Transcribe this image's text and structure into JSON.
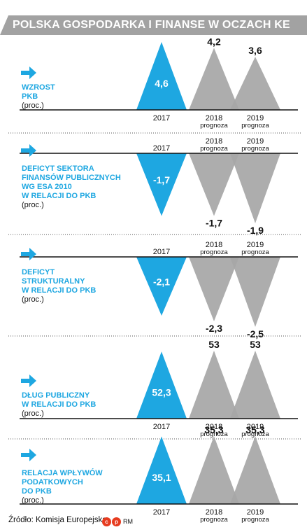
{
  "title": "POLSKA GOSPODARKA I FINANSE W OCZACH KE",
  "source": "Źródło: Komisja Europejska",
  "credit": "RM",
  "logo_text": [
    "c",
    "p"
  ],
  "colors": {
    "highlight": "#1ea7e1",
    "forecast": "#a6a6a6",
    "arrow": "#1ea7e1",
    "header": "#a2a2a2"
  },
  "chart_data": [
    {
      "type": "bar",
      "id": "gdp",
      "label": [
        "WZROST",
        "PKB"
      ],
      "unit": "(proc.)",
      "categories": [
        "2017",
        "2018",
        "2019"
      ],
      "category_notes": [
        "",
        "prognoza",
        "prognoza"
      ],
      "values": [
        4.6,
        4.2,
        3.6
      ],
      "value_labels": [
        "4,6",
        "4,2",
        "3,6"
      ]
    },
    {
      "type": "bar",
      "id": "deficit",
      "label": [
        "DEFICYT SEKTORA",
        "FINANSÓW PUBLICZNYCH",
        "WG ESA 2010",
        "W RELACJI DO PKB"
      ],
      "unit": "(proc.)",
      "categories": [
        "2017",
        "2018",
        "2019"
      ],
      "category_notes": [
        "",
        "prognoza",
        "prognoza"
      ],
      "values": [
        -1.7,
        -1.7,
        -1.9
      ],
      "value_labels": [
        "-1,7",
        "-1,7",
        "-1,9"
      ]
    },
    {
      "type": "bar",
      "id": "structural",
      "label": [
        "DEFICYT",
        "STRUKTURALNY",
        "W RELACJI DO PKB"
      ],
      "unit": "(proc.)",
      "categories": [
        "2017",
        "2018",
        "2019"
      ],
      "category_notes": [
        "",
        "prognoza",
        "prognoza"
      ],
      "values": [
        -2.1,
        -2.3,
        -2.5
      ],
      "value_labels": [
        "-2,1",
        "-2,3",
        "-2,5"
      ]
    },
    {
      "type": "bar",
      "id": "debt",
      "label": [
        "DŁUG PUBLICZNY",
        "W RELACJI DO PKB"
      ],
      "unit": "(proc.)",
      "categories": [
        "2017",
        "2018",
        "2019"
      ],
      "category_notes": [
        "",
        "prognoza",
        "prognoza"
      ],
      "values": [
        52.3,
        53,
        53
      ],
      "value_labels": [
        "52,3",
        "53",
        "53"
      ]
    },
    {
      "type": "bar",
      "id": "tax",
      "label": [
        "RELACJA WPŁYWÓW",
        "PODATKOWYCH",
        "DO PKB"
      ],
      "unit": "(proc.)",
      "categories": [
        "2017",
        "2018",
        "2019"
      ],
      "category_notes": [
        "",
        "prognoza",
        "prognoza"
      ],
      "values": [
        35.1,
        35.3,
        35.3
      ],
      "value_labels": [
        "35,1",
        "35,3",
        "35,3"
      ]
    }
  ]
}
